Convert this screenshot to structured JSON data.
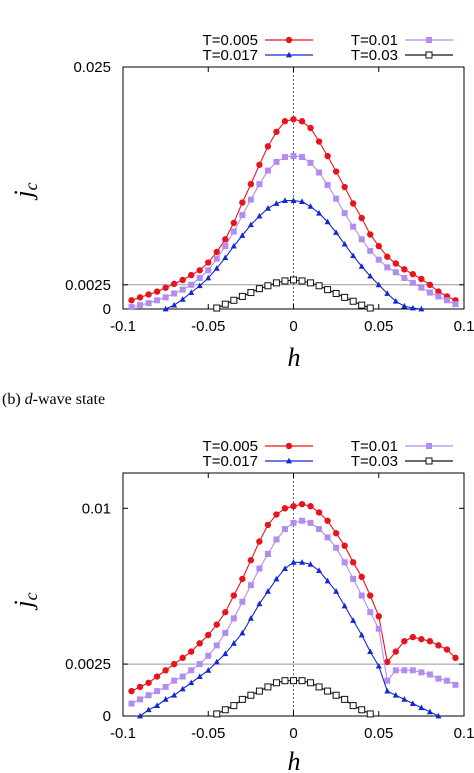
{
  "caption_b": {
    "prefix": "(b) ",
    "italic": "d",
    "suffix": "-wave state"
  },
  "chart_data": [
    {
      "type": "line",
      "xlabel": "h",
      "ylabel": "j",
      "ylabel_sub": "c",
      "xlim": [
        -0.1,
        0.1
      ],
      "ylim": [
        0,
        0.025
      ],
      "xticks": [
        "-0.1",
        "-0.05",
        "0",
        "0.05",
        "0.1"
      ],
      "yticks": [
        {
          "value": 0,
          "label": "0"
        },
        {
          "value": 0.0025,
          "label": "0.0025"
        },
        {
          "value": 0.025,
          "label": "0.025"
        }
      ],
      "reference_lines": {
        "horizontal": 0.0025,
        "vertical": 0
      },
      "legend_position": "top, above plot",
      "series": [
        {
          "name": "T=0.005",
          "color": "#e8141c",
          "marker": "circle",
          "x": [
            -0.095,
            -0.09,
            -0.085,
            -0.08,
            -0.075,
            -0.07,
            -0.065,
            -0.06,
            -0.055,
            -0.05,
            -0.045,
            -0.04,
            -0.035,
            -0.03,
            -0.025,
            -0.02,
            -0.015,
            -0.01,
            -0.005,
            0,
            0.005,
            0.01,
            0.015,
            0.02,
            0.025,
            0.03,
            0.035,
            0.04,
            0.045,
            0.05,
            0.055,
            0.06,
            0.065,
            0.07,
            0.075,
            0.08,
            0.085,
            0.09,
            0.095
          ],
          "y": [
            0.0009,
            0.0012,
            0.0015,
            0.0018,
            0.0022,
            0.0026,
            0.003,
            0.0035,
            0.004,
            0.0048,
            0.0059,
            0.0072,
            0.0089,
            0.011,
            0.0129,
            0.0149,
            0.0168,
            0.0183,
            0.0194,
            0.0196,
            0.0194,
            0.0187,
            0.0173,
            0.0158,
            0.0142,
            0.0126,
            0.0109,
            0.0094,
            0.0077,
            0.0065,
            0.0054,
            0.0047,
            0.0041,
            0.0036,
            0.0031,
            0.0025,
            0.0018,
            0.0013,
            0.0009
          ]
        },
        {
          "name": "T=0.01",
          "color": "#b38cf0",
          "marker": "square",
          "x": [
            -0.095,
            -0.09,
            -0.085,
            -0.08,
            -0.075,
            -0.07,
            -0.065,
            -0.06,
            -0.055,
            -0.05,
            -0.045,
            -0.04,
            -0.035,
            -0.03,
            -0.025,
            -0.02,
            -0.015,
            -0.01,
            -0.005,
            0,
            0.005,
            0.01,
            0.015,
            0.02,
            0.025,
            0.03,
            0.035,
            0.04,
            0.045,
            0.05,
            0.055,
            0.06,
            0.065,
            0.07,
            0.075,
            0.08,
            0.085,
            0.09,
            0.095
          ],
          "y": [
            0.0002,
            0.0004,
            0.0006,
            0.0009,
            0.0012,
            0.0016,
            0.002,
            0.0025,
            0.0032,
            0.004,
            0.0052,
            0.0065,
            0.008,
            0.0097,
            0.0113,
            0.0129,
            0.0143,
            0.0152,
            0.0157,
            0.0158,
            0.0157,
            0.0151,
            0.0141,
            0.0128,
            0.0114,
            0.0099,
            0.0085,
            0.0072,
            0.006,
            0.0051,
            0.0043,
            0.0038,
            0.0032,
            0.0027,
            0.0022,
            0.0017,
            0.0013,
            0.0009,
            0.0005
          ]
        },
        {
          "name": "T=0.017",
          "color": "#1428d2",
          "marker": "triangle",
          "x": [
            -0.075,
            -0.07,
            -0.065,
            -0.06,
            -0.055,
            -0.05,
            -0.045,
            -0.04,
            -0.035,
            -0.03,
            -0.025,
            -0.02,
            -0.015,
            -0.01,
            -0.005,
            0,
            0.005,
            0.01,
            0.015,
            0.02,
            0.025,
            0.03,
            0.035,
            0.04,
            0.045,
            0.05,
            0.055,
            0.06,
            0.065,
            0.07,
            0.075
          ],
          "y": [
            0.0,
            0.0004,
            0.001,
            0.0017,
            0.0024,
            0.0032,
            0.0042,
            0.0053,
            0.0065,
            0.0076,
            0.0087,
            0.0096,
            0.0104,
            0.0109,
            0.0112,
            0.0112,
            0.0111,
            0.0106,
            0.0099,
            0.009,
            0.0079,
            0.0067,
            0.0055,
            0.0044,
            0.0034,
            0.0025,
            0.0016,
            0.0008,
            0.0003,
            0.0001,
            0.0
          ]
        },
        {
          "name": "T=0.03",
          "color": "#111111",
          "marker": "open-square",
          "x": [
            -0.045,
            -0.04,
            -0.035,
            -0.03,
            -0.025,
            -0.02,
            -0.015,
            -0.01,
            -0.005,
            0,
            0.005,
            0.01,
            0.015,
            0.02,
            0.025,
            0.03,
            0.035,
            0.04,
            0.045
          ],
          "y": [
            0.0001,
            0.0005,
            0.0009,
            0.0013,
            0.0017,
            0.0021,
            0.0024,
            0.0027,
            0.0029,
            0.003,
            0.0029,
            0.0027,
            0.0024,
            0.002,
            0.0016,
            0.0012,
            0.0008,
            0.0004,
            0.0001
          ]
        }
      ]
    },
    {
      "type": "line",
      "xlabel": "h",
      "ylabel": "j",
      "ylabel_sub": "c",
      "xlim": [
        -0.1,
        0.1
      ],
      "ylim": [
        0,
        0.0117
      ],
      "xticks": [
        "-0.1",
        "-0.05",
        "0",
        "0.05",
        "0.1"
      ],
      "yticks": [
        {
          "value": 0,
          "label": "0"
        },
        {
          "value": 0.0025,
          "label": "0.0025"
        },
        {
          "value": 0.01,
          "label": "0.01"
        }
      ],
      "reference_lines": {
        "horizontal": 0.0025,
        "vertical": 0
      },
      "legend_position": "top, above plot",
      "series": [
        {
          "name": "T=0.005",
          "color": "#e8141c",
          "marker": "circle",
          "x": [
            -0.095,
            -0.09,
            -0.085,
            -0.08,
            -0.075,
            -0.07,
            -0.065,
            -0.06,
            -0.055,
            -0.05,
            -0.045,
            -0.04,
            -0.035,
            -0.03,
            -0.025,
            -0.02,
            -0.015,
            -0.01,
            -0.005,
            0,
            0.005,
            0.01,
            0.015,
            0.02,
            0.025,
            0.03,
            0.035,
            0.04,
            0.045,
            0.05,
            0.055,
            0.06,
            0.065,
            0.07,
            0.075,
            0.08,
            0.085,
            0.09,
            0.095
          ],
          "y": [
            0.0012,
            0.0014,
            0.0016,
            0.0019,
            0.0022,
            0.0025,
            0.0028,
            0.0031,
            0.0035,
            0.0039,
            0.0044,
            0.005,
            0.0058,
            0.0066,
            0.0075,
            0.0084,
            0.0092,
            0.0097,
            0.01,
            0.0101,
            0.0102,
            0.0101,
            0.0098,
            0.0094,
            0.0088,
            0.0082,
            0.0074,
            0.0067,
            0.0058,
            0.0048,
            0.0026,
            0.0031,
            0.0036,
            0.0038,
            0.0037,
            0.0036,
            0.0034,
            0.0032,
            0.0028
          ]
        },
        {
          "name": "T=0.01",
          "color": "#b38cf0",
          "marker": "square",
          "x": [
            -0.095,
            -0.09,
            -0.085,
            -0.08,
            -0.075,
            -0.07,
            -0.065,
            -0.06,
            -0.055,
            -0.05,
            -0.045,
            -0.04,
            -0.035,
            -0.03,
            -0.025,
            -0.02,
            -0.015,
            -0.01,
            -0.005,
            0,
            0.005,
            0.01,
            0.015,
            0.02,
            0.025,
            0.03,
            0.035,
            0.04,
            0.045,
            0.05,
            0.055,
            0.06,
            0.065,
            0.07,
            0.075,
            0.08,
            0.085,
            0.09,
            0.095
          ],
          "y": [
            0.0006,
            0.0008,
            0.001,
            0.0012,
            0.0014,
            0.0017,
            0.0019,
            0.0022,
            0.0025,
            0.0029,
            0.0034,
            0.004,
            0.0047,
            0.0055,
            0.0063,
            0.0071,
            0.0078,
            0.0085,
            0.009,
            0.0093,
            0.0094,
            0.0093,
            0.009,
            0.0086,
            0.0081,
            0.0074,
            0.0066,
            0.0058,
            0.005,
            0.0042,
            0.0017,
            0.0022,
            0.0022,
            0.0022,
            0.0021,
            0.002,
            0.0018,
            0.0017,
            0.0015
          ]
        },
        {
          "name": "T=0.017",
          "color": "#1428d2",
          "marker": "triangle",
          "x": [
            -0.09,
            -0.085,
            -0.08,
            -0.075,
            -0.07,
            -0.065,
            -0.06,
            -0.055,
            -0.05,
            -0.045,
            -0.04,
            -0.035,
            -0.03,
            -0.025,
            -0.02,
            -0.015,
            -0.01,
            -0.005,
            0,
            0.005,
            0.01,
            0.015,
            0.02,
            0.025,
            0.03,
            0.035,
            0.04,
            0.045,
            0.05,
            0.055,
            0.06,
            0.065,
            0.07,
            0.075,
            0.08,
            0.085
          ],
          "y": [
            0.0,
            0.0003,
            0.0005,
            0.0008,
            0.001,
            0.0013,
            0.0016,
            0.0019,
            0.0022,
            0.0026,
            0.003,
            0.0035,
            0.004,
            0.0047,
            0.0054,
            0.006,
            0.0066,
            0.0071,
            0.0074,
            0.0074,
            0.0073,
            0.007,
            0.0065,
            0.006,
            0.0053,
            0.0046,
            0.0039,
            0.0031,
            0.0024,
            0.0012,
            0.001,
            0.0008,
            0.0006,
            0.0004,
            0.0002,
            0.0
          ]
        },
        {
          "name": "T=0.03",
          "color": "#111111",
          "marker": "open-square",
          "x": [
            -0.045,
            -0.04,
            -0.035,
            -0.03,
            -0.025,
            -0.02,
            -0.015,
            -0.01,
            -0.005,
            0,
            0.005,
            0.01,
            0.015,
            0.02,
            0.025,
            0.03,
            0.035,
            0.04,
            0.045
          ],
          "y": [
            0.0001,
            0.0003,
            0.0005,
            0.0008,
            0.001,
            0.0012,
            0.0014,
            0.0016,
            0.0017,
            0.0017,
            0.0017,
            0.0016,
            0.0014,
            0.0012,
            0.001,
            0.0008,
            0.0005,
            0.0003,
            0.0001
          ]
        }
      ]
    }
  ]
}
